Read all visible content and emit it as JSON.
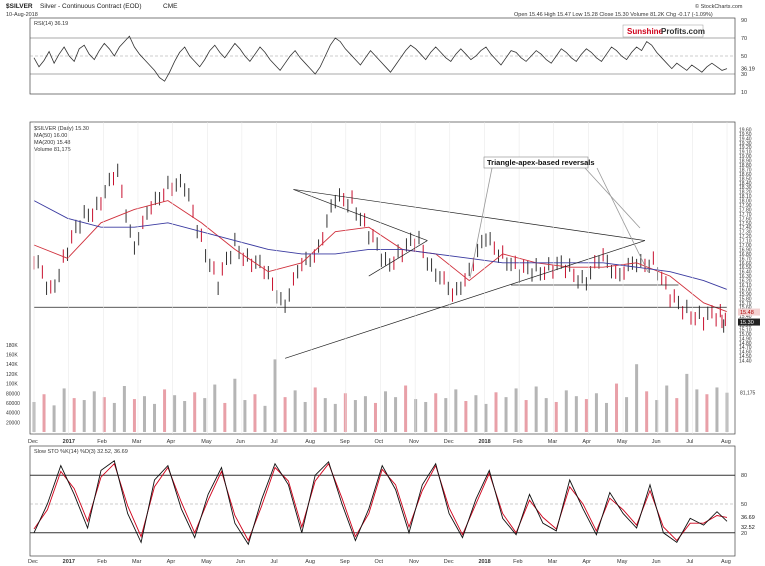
{
  "header": {
    "symbol": "$SILVER",
    "description": "Silver - Continuous Contract (EOD)",
    "exchange": "CME",
    "date": "10-Aug-2018",
    "ohlc": "Open 15.46  High 15.47  Low 15.28  Close 15.30  Volume 81.2K  Chg -0.17 (-1.09%)",
    "credit": "© StockCharts.com"
  },
  "brand": {
    "part1": "Sunshine",
    "part2": "Profits.com",
    "accent": "#d0021b"
  },
  "annotation": "Triangle-apex-based reversals",
  "colors": {
    "price_up": "#333333",
    "price_down": "#c8102e",
    "ma50": "#d0313d",
    "ma200": "#3a3aa0",
    "vol_up": "#b5b5b5",
    "vol_down": "#e8a0a8",
    "rsi_ob": "#2e7d32",
    "rsi_os": "#8b1a1a"
  },
  "chart_data": [
    {
      "type": "line",
      "panel": "rsi",
      "legend": "RSI(14) 36.19",
      "ylim": [
        10,
        90
      ],
      "y_ticks": [
        10,
        30,
        50,
        70,
        90
      ],
      "levels": [
        30,
        70
      ],
      "last_value": "36.19",
      "series": [
        {
          "x": [
            0,
            3,
            6,
            9,
            12,
            15,
            18,
            21,
            24,
            27,
            30,
            33,
            36,
            39,
            42,
            45,
            48,
            51,
            54,
            57,
            60,
            63,
            66,
            69,
            72,
            75,
            78,
            81,
            84,
            87,
            90,
            93,
            96,
            99,
            102,
            105,
            108,
            111,
            114,
            117,
            120,
            123,
            126,
            129,
            132,
            135,
            138,
            141,
            144,
            147,
            150,
            153,
            156,
            159,
            162,
            165,
            168,
            171,
            174,
            177,
            180,
            183,
            186,
            189,
            192,
            195,
            198,
            201,
            204,
            207,
            210,
            213,
            216,
            219,
            222,
            225,
            228,
            231,
            234,
            237,
            240,
            243,
            246,
            249,
            252,
            255,
            258,
            261,
            264,
            267,
            270,
            273,
            276,
            279,
            282,
            285,
            288,
            291,
            294,
            297,
            300,
            303,
            306,
            309,
            312,
            315,
            318,
            321,
            324,
            327,
            330,
            333,
            336,
            339,
            342,
            345,
            348,
            351,
            354,
            357,
            360,
            363,
            366,
            369,
            372,
            375,
            378,
            381,
            384,
            387,
            390,
            393,
            396,
            399,
            402,
            405,
            408,
            411,
            414
          ],
          "y": [
            48,
            38,
            45,
            55,
            42,
            52,
            60,
            50,
            44,
            58,
            62,
            52,
            46,
            56,
            64,
            58,
            50,
            60,
            66,
            72,
            60,
            52,
            46,
            40,
            34,
            26,
            22,
            32,
            44,
            54,
            60,
            50,
            44,
            38,
            46,
            56,
            62,
            54,
            48,
            56,
            64,
            58,
            50,
            44,
            52,
            60,
            54,
            46,
            40,
            34,
            42,
            50,
            56,
            48,
            42,
            36,
            30,
            38,
            50,
            62,
            70,
            66,
            58,
            52,
            46,
            40,
            48,
            56,
            50,
            44,
            38,
            32,
            40,
            48,
            56,
            62,
            58,
            52,
            46,
            54,
            60,
            54,
            48,
            44,
            52,
            58,
            52,
            46,
            50,
            56,
            60,
            52,
            46,
            40,
            48,
            56,
            54,
            48,
            44,
            50,
            56,
            52,
            46,
            42,
            50,
            58,
            54,
            48,
            44,
            52,
            58,
            54,
            48,
            44,
            52,
            60,
            56,
            50,
            46,
            54,
            60,
            56,
            66,
            62,
            54,
            48,
            42,
            36,
            42,
            38,
            34,
            40,
            36,
            32,
            38,
            42,
            38,
            34,
            36
          ]
        }
      ]
    },
    {
      "type": "line",
      "panel": "price",
      "legend": [
        "$SILVER (Daily) 15.30",
        "MA(50) 16.00",
        "MA(200) 15.48",
        "Volume 81,175"
      ],
      "ylim": [
        14.3,
        19.7
      ],
      "y_ticks": [
        14.4,
        14.5,
        14.6,
        14.7,
        14.8,
        14.9,
        15.0,
        15.1,
        15.2,
        15.3,
        15.4,
        15.5,
        15.6,
        15.7,
        15.8,
        15.9,
        16.0,
        16.1,
        16.2,
        16.3,
        16.4,
        16.5,
        16.6,
        16.7,
        16.8,
        16.9,
        17.0,
        17.1,
        17.2,
        17.3,
        17.4,
        17.5,
        17.6,
        17.7,
        17.8,
        17.9,
        18.0,
        18.1,
        18.2,
        18.3,
        18.4,
        18.5,
        18.6,
        18.7,
        18.8,
        18.9,
        19.0,
        19.1,
        19.2,
        19.3,
        19.4,
        19.5,
        19.6
      ],
      "price_boxes": [
        "15.48",
        "15.30"
      ],
      "x_ticks": [
        "Dec",
        "2017",
        "Feb",
        "Mar",
        "Apr",
        "May",
        "Jun",
        "Jul",
        "Aug",
        "Sep",
        "Oct",
        "Nov",
        "Dec",
        "2018",
        "Feb",
        "Mar",
        "Apr",
        "May",
        "Jun",
        "Jul",
        "Aug"
      ],
      "series": [
        {
          "name": "$SILVER",
          "x": [
            0,
            10,
            20,
            30,
            40,
            50,
            60,
            70,
            80,
            90,
            100,
            110,
            120,
            130,
            140,
            150,
            160,
            170,
            180,
            190,
            200,
            210,
            220,
            230,
            240,
            250,
            260,
            270,
            280,
            290,
            300,
            310,
            320,
            330,
            340,
            350,
            360,
            370,
            380,
            390,
            400,
            410,
            414
          ],
          "y": [
            16.6,
            16.0,
            16.9,
            17.6,
            18.1,
            18.5,
            17.1,
            17.7,
            18.5,
            18.2,
            17.2,
            16.1,
            17.0,
            16.7,
            16.2,
            15.8,
            16.4,
            17.1,
            17.9,
            18.1,
            17.2,
            16.6,
            16.9,
            17.0,
            16.5,
            15.7,
            16.6,
            17.0,
            16.9,
            16.3,
            16.5,
            16.5,
            16.4,
            16.3,
            16.6,
            16.5,
            16.4,
            16.8,
            15.7,
            15.6,
            15.3,
            15.4,
            15.3
          ]
        },
        {
          "name": "MA(50)",
          "x": [
            0,
            20,
            40,
            60,
            80,
            100,
            120,
            140,
            160,
            180,
            200,
            220,
            240,
            260,
            280,
            300,
            320,
            340,
            360,
            380,
            400,
            414
          ],
          "y": [
            17.0,
            16.7,
            17.5,
            17.8,
            18.0,
            17.5,
            16.9,
            16.4,
            16.6,
            17.3,
            17.4,
            16.9,
            16.8,
            16.2,
            16.8,
            16.6,
            16.5,
            16.5,
            16.6,
            16.3,
            15.7,
            15.5
          ]
        },
        {
          "name": "MA(200)",
          "x": [
            0,
            20,
            40,
            60,
            80,
            100,
            120,
            140,
            160,
            180,
            200,
            220,
            240,
            260,
            280,
            300,
            320,
            340,
            360,
            380,
            400,
            414
          ],
          "y": [
            18.0,
            17.6,
            17.4,
            17.4,
            17.5,
            17.3,
            17.1,
            16.9,
            16.8,
            16.8,
            16.9,
            16.9,
            16.8,
            16.7,
            16.6,
            16.6,
            16.6,
            16.6,
            16.5,
            16.4,
            16.2,
            16.0
          ]
        }
      ],
      "trendlines": [
        {
          "from": [
            155,
            18.25
          ],
          "to": [
            365,
            17.1
          ]
        },
        {
          "from": [
            150,
            14.45
          ],
          "to": [
            365,
            17.1
          ]
        },
        {
          "from": [
            155,
            18.25
          ],
          "to": [
            235,
            17.1
          ]
        },
        {
          "from": [
            200,
            16.3
          ],
          "to": [
            235,
            17.1
          ]
        },
        {
          "from": [
            285,
            16.1
          ],
          "to": [
            385,
            16.1
          ]
        },
        {
          "from": [
            0,
            15.6
          ],
          "to": [
            414,
            15.6
          ]
        }
      ]
    },
    {
      "type": "bar",
      "panel": "volume",
      "y_ticks_labels": [
        "180K",
        "160K",
        "140K",
        "120K",
        "100K",
        "80000",
        "60000",
        "40000",
        "20000"
      ],
      "ylim": [
        0,
        190000
      ],
      "last_value": "81,175",
      "x": [
        0,
        6,
        12,
        18,
        24,
        30,
        36,
        42,
        48,
        54,
        60,
        66,
        72,
        78,
        84,
        90,
        96,
        102,
        108,
        114,
        120,
        126,
        132,
        138,
        144,
        150,
        156,
        162,
        168,
        174,
        180,
        186,
        192,
        198,
        204,
        210,
        216,
        222,
        228,
        234,
        240,
        246,
        252,
        258,
        264,
        270,
        276,
        282,
        288,
        294,
        300,
        306,
        312,
        318,
        324,
        330,
        336,
        342,
        348,
        354,
        360,
        366,
        372,
        378,
        384,
        390,
        396,
        402,
        408,
        414
      ],
      "values": [
        62000,
        78000,
        55000,
        90000,
        70000,
        66000,
        84000,
        72000,
        60000,
        95000,
        68000,
        74000,
        58000,
        88000,
        76000,
        64000,
        82000,
        70000,
        98000,
        60000,
        110000,
        66000,
        78000,
        54000,
        150000,
        72000,
        86000,
        62000,
        92000,
        70000,
        58000,
        80000,
        66000,
        74000,
        60000,
        84000,
        72000,
        96000,
        68000,
        62000,
        80000,
        70000,
        88000,
        64000,
        76000,
        58000,
        82000,
        72000,
        90000,
        66000,
        94000,
        70000,
        62000,
        86000,
        74000,
        68000,
        80000,
        60000,
        100000,
        72000,
        140000,
        84000,
        66000,
        96000,
        70000,
        120000,
        88000,
        78000,
        92000,
        81175
      ]
    },
    {
      "type": "line",
      "panel": "stochastic",
      "legend": "Slow STO %K(14) %D(3) 32.52, 36.69",
      "ylim": [
        0,
        100
      ],
      "y_ticks": [
        20,
        50,
        80
      ],
      "levels": [
        20,
        80
      ],
      "last_values": [
        "36.69",
        "32.52"
      ],
      "x_ticks": [
        "Dec",
        "2017",
        "Feb",
        "Mar",
        "Apr",
        "May",
        "Jun",
        "Jul",
        "Aug",
        "Sep",
        "Oct",
        "Nov",
        "Dec",
        "2018",
        "Feb",
        "Mar",
        "Apr",
        "May",
        "Jun",
        "Jul",
        "Aug"
      ],
      "series": [
        {
          "name": "%K",
          "x": [
            0,
            8,
            16,
            24,
            32,
            40,
            48,
            56,
            64,
            72,
            80,
            88,
            96,
            104,
            112,
            120,
            128,
            136,
            144,
            152,
            160,
            168,
            176,
            184,
            192,
            200,
            208,
            216,
            224,
            232,
            240,
            248,
            256,
            264,
            272,
            280,
            288,
            296,
            304,
            312,
            320,
            328,
            336,
            344,
            352,
            360,
            368,
            376,
            384,
            392,
            400,
            408,
            414
          ],
          "y": [
            20,
            50,
            90,
            60,
            25,
            85,
            95,
            40,
            10,
            75,
            90,
            45,
            15,
            60,
            88,
            30,
            8,
            55,
            92,
            70,
            20,
            80,
            94,
            50,
            12,
            45,
            90,
            65,
            20,
            70,
            92,
            40,
            15,
            55,
            85,
            35,
            18,
            60,
            30,
            22,
            75,
            45,
            18,
            62,
            40,
            25,
            70,
            20,
            10,
            35,
            28,
            42,
            32
          ]
        },
        {
          "name": "%D",
          "x": [
            0,
            8,
            16,
            24,
            32,
            40,
            48,
            56,
            64,
            72,
            80,
            88,
            96,
            104,
            112,
            120,
            128,
            136,
            144,
            152,
            160,
            168,
            176,
            184,
            192,
            200,
            208,
            216,
            224,
            232,
            240,
            248,
            256,
            264,
            272,
            280,
            288,
            296,
            304,
            312,
            320,
            328,
            336,
            344,
            352,
            360,
            368,
            376,
            384,
            392,
            400,
            408,
            414
          ],
          "y": [
            24,
            44,
            84,
            66,
            32,
            78,
            92,
            48,
            16,
            68,
            88,
            52,
            20,
            54,
            84,
            38,
            12,
            48,
            88,
            74,
            26,
            74,
            92,
            56,
            16,
            40,
            86,
            70,
            26,
            64,
            90,
            46,
            18,
            50,
            82,
            40,
            20,
            54,
            36,
            24,
            68,
            50,
            22,
            56,
            44,
            28,
            64,
            26,
            12,
            30,
            30,
            38,
            36
          ]
        }
      ]
    }
  ]
}
